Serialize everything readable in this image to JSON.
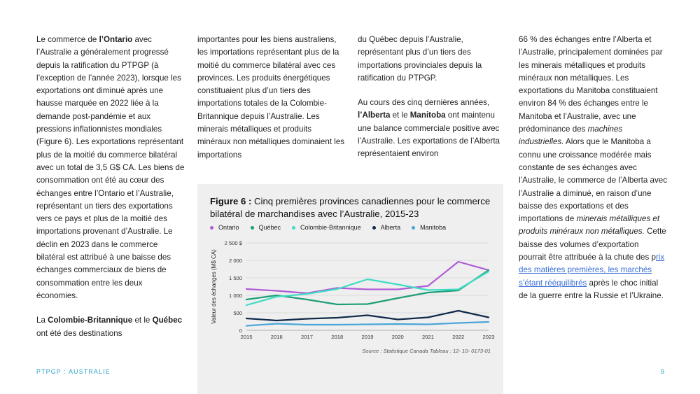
{
  "col1": {
    "p1_a": "Le commerce de ",
    "p1_b": "l’Ontario",
    "p1_c": " avec l’Australie a généralement progressé depuis la ratification du PTPGP (à l’exception de l’année 2023), lorsque les exportations ont diminué après une hausse marquée en 2022 liée à la demande post-pandémie et aux pressions inflationnistes mondiales (Figure 6). Les exportations représentant plus de la moitié du commerce bilatéral avec un total de 3,5 G$ CA. Les biens de consommation ont été au cœur des échanges entre l’Ontario et l’Australie, représentant un tiers des exportations vers ce pays et plus de la moitié des importations provenant d’Australie. Le déclin en 2023 dans le commerce bilatéral est attribué à une baisse des échanges commerciaux de biens de consommation entre les deux économies.",
    "p2_a": "La ",
    "p2_b": "Colombie-Britannique",
    "p2_c": " et le ",
    "p2_d": "Québec",
    "p2_e": " ont été des destinations"
  },
  "col2": {
    "text": "importantes pour les biens australiens, les importations représentant plus de la moitié du commerce bilatéral avec ces provinces. Les produits énergétiques constituaient plus d’un tiers des importations totales de la Colombie-Britannique depuis l’Australie. Les minerais métalliques et produits minéraux non métalliques dominaient les importations"
  },
  "col3": {
    "p1": "du Québec depuis l’Australie, représentant plus d’un tiers des importations provinciales depuis la ratification du PTPGP.",
    "p2_a": "Au cours des cinq dernières années, ",
    "p2_b": "l’Alberta",
    "p2_c": " et le ",
    "p2_d": "Manitoba",
    "p2_e": " ont maintenu une balance commerciale positive avec l’Australie. Les exportations de l’Alberta représentaient environ"
  },
  "col4": {
    "t1": "66 % des échanges entre l’Alberta et l’Australie, principalement dominées par les minerais métalliques et produits minéraux non métalliques. Les exportations du Manitoba constituaient environ 84 % des échanges entre le Manitoba et l’Australie, avec une prédominance des ",
    "i1": "machines industrielles.",
    "t2": " Alors que le Manitoba a connu une croissance modérée mais constante de ses échanges avec l’Australie, le commerce de l’Alberta avec l’Australie a diminué, en raison d’une baisse des exportations et des importations de ",
    "i2": "minerais métalliques et produits minéraux non métalliques.",
    "t3": " Cette baisse des volumes d’exportation pourrait être attribuée à la chute des p",
    "link": "rix des matières premières, les marchés s’étant rééquilibrés",
    "t4": " après le choc initial de la guerre entre la Russie et l’Ukraine."
  },
  "figure": {
    "title_bold": "Figure 6 :",
    "title_rest": " Cinq premières provinces canadiennes pour le commerce bilatéral de marchandises avec l’Australie, 2015-23",
    "source": "Source : Statistique Canada Tableau : 12- 10- 0173-01"
  },
  "chart_data": {
    "type": "line",
    "title": "Figure 6 : Cinq premières provinces canadiennes pour le commerce bilatéral de marchandises avec l’Australie, 2015-23",
    "xlabel": "",
    "ylabel": "Valeur des échanges (M$ CA)",
    "x": [
      "2015",
      "2016",
      "2017",
      "2018",
      "2019",
      "2020",
      "2021",
      "2022",
      "2023"
    ],
    "ylim": [
      0,
      2500
    ],
    "yticks": [
      0,
      500,
      1000,
      1500,
      2000,
      2500
    ],
    "ytick_labels": [
      "0",
      "500",
      "1 000",
      "1 500",
      "2 000",
      "2 500 $"
    ],
    "grid": "horizontal",
    "legend": "top",
    "series": [
      {
        "name": "Ontario",
        "color": "#b15bd6",
        "values": [
          1180,
          1130,
          1060,
          1210,
          1170,
          1170,
          1270,
          1960,
          1720
        ]
      },
      {
        "name": "Québec",
        "color": "#1e9e78",
        "values": [
          880,
          1000,
          880,
          740,
          750,
          920,
          1080,
          1140,
          1720
        ]
      },
      {
        "name": "Colombie-Britannique",
        "color": "#3fdcc4",
        "values": [
          720,
          960,
          1040,
          1180,
          1460,
          1310,
          1150,
          1170,
          1680
        ]
      },
      {
        "name": "Alberta",
        "color": "#0f2a4a",
        "values": [
          340,
          280,
          330,
          360,
          430,
          310,
          370,
          560,
          370
        ]
      },
      {
        "name": "Manitoba",
        "color": "#4aa6d8",
        "values": [
          130,
          190,
          160,
          160,
          170,
          180,
          170,
          210,
          240
        ]
      }
    ]
  },
  "footer": {
    "label": "PTPGP : AUSTRALIE",
    "page": "9"
  }
}
